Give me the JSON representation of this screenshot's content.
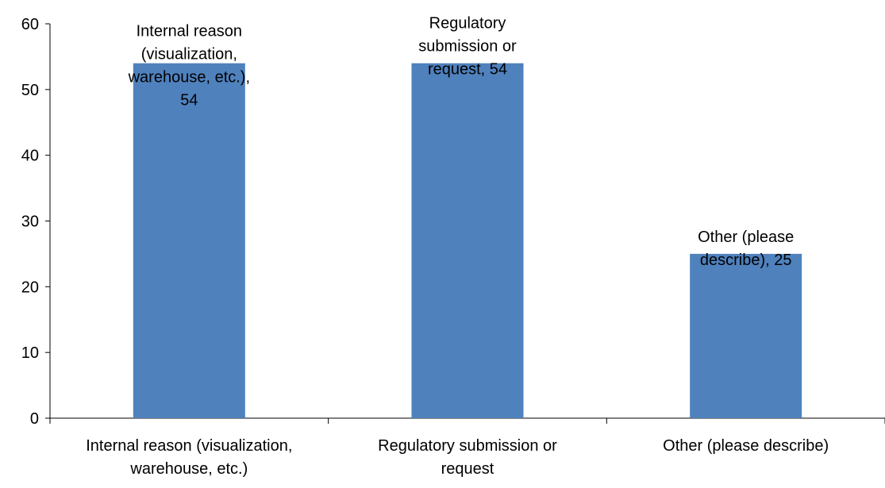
{
  "chart_data": {
    "type": "bar",
    "categories": [
      "Internal reason (visualization, warehouse, etc.)",
      "Regulatory submission or request",
      "Other (please describe)"
    ],
    "category_label_lines": [
      [
        "Internal reason (visualization,",
        "warehouse, etc.)"
      ],
      [
        "Regulatory submission or",
        "request"
      ],
      [
        "Other (please describe)"
      ]
    ],
    "values": [
      54,
      54,
      25
    ],
    "data_labels": [
      [
        "Internal reason",
        "(visualization,",
        "warehouse, etc.),",
        "54"
      ],
      [
        "Regulatory",
        "submission or",
        "request, 54"
      ],
      [
        "Other (please",
        "describe), 25"
      ]
    ],
    "title": "",
    "xlabel": "",
    "ylabel": "",
    "ylim": [
      0,
      60
    ],
    "yticks": [
      "0",
      "10",
      "20",
      "30",
      "40",
      "50",
      "60"
    ],
    "grid": false,
    "legend": "none",
    "colors": {
      "bar": "#4f81bd",
      "axis": "#000000"
    }
  }
}
